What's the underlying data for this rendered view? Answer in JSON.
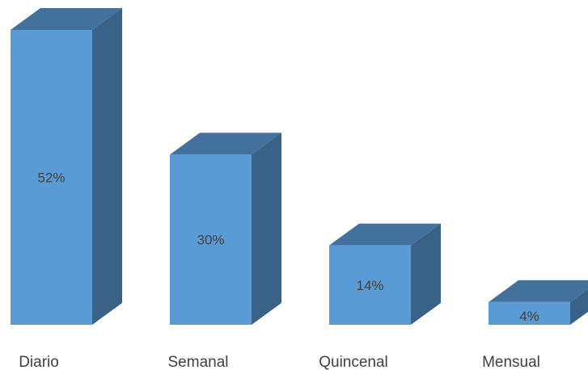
{
  "chart_data": {
    "type": "bar",
    "style": "3d-column",
    "title": "",
    "xlabel": "",
    "ylabel": "",
    "categories": [
      "Diario",
      "Semanal",
      "Quincenal",
      "Mensual"
    ],
    "values": [
      52,
      30,
      14,
      4
    ],
    "data_labels": [
      "52%",
      "30%",
      "14%",
      "4%"
    ],
    "ylim": [
      0,
      52
    ],
    "grid": false,
    "legend": "none",
    "colors": {
      "front": "#5B9BD5",
      "top": "#41719C",
      "side": "#3A6186",
      "label_text": "#404040"
    }
  }
}
